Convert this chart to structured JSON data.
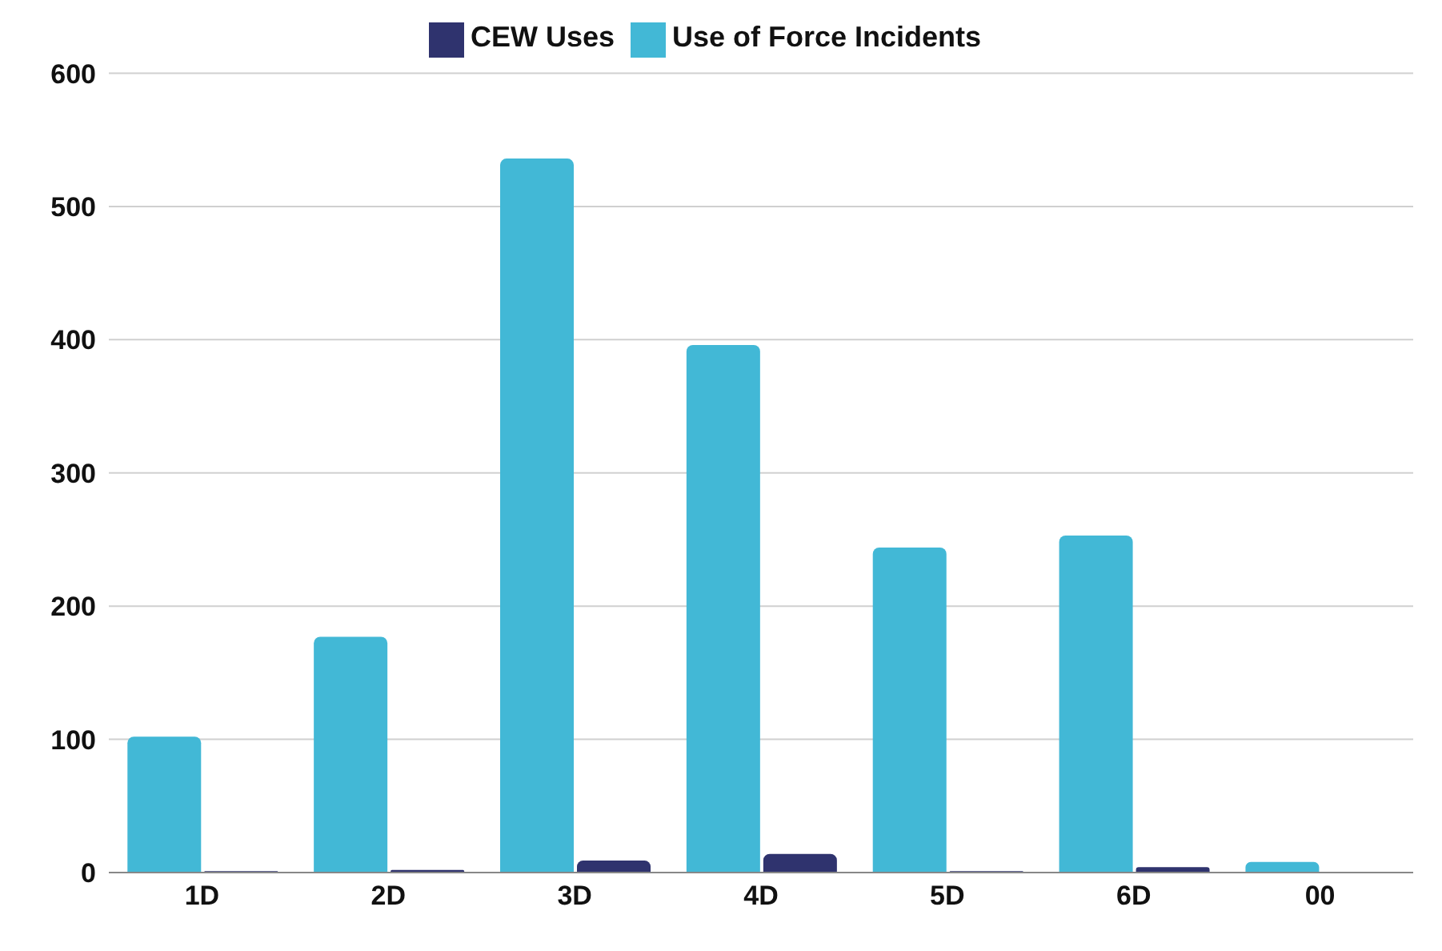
{
  "chart_data": {
    "type": "bar",
    "categories": [
      "1D",
      "2D",
      "3D",
      "4D",
      "5D",
      "6D",
      "00"
    ],
    "series": [
      {
        "name": "Use of Force Incidents",
        "color": "#42b8d6",
        "values": [
          102,
          177,
          536,
          396,
          244,
          253,
          8
        ]
      },
      {
        "name": "CEW Uses",
        "color": "#2f336e",
        "values": [
          1,
          2,
          9,
          14,
          1,
          4,
          0
        ]
      }
    ],
    "ylim": [
      0,
      600
    ],
    "yticks": [
      0,
      100,
      200,
      300,
      400,
      500,
      600
    ],
    "grid": "y",
    "legend": "top"
  }
}
